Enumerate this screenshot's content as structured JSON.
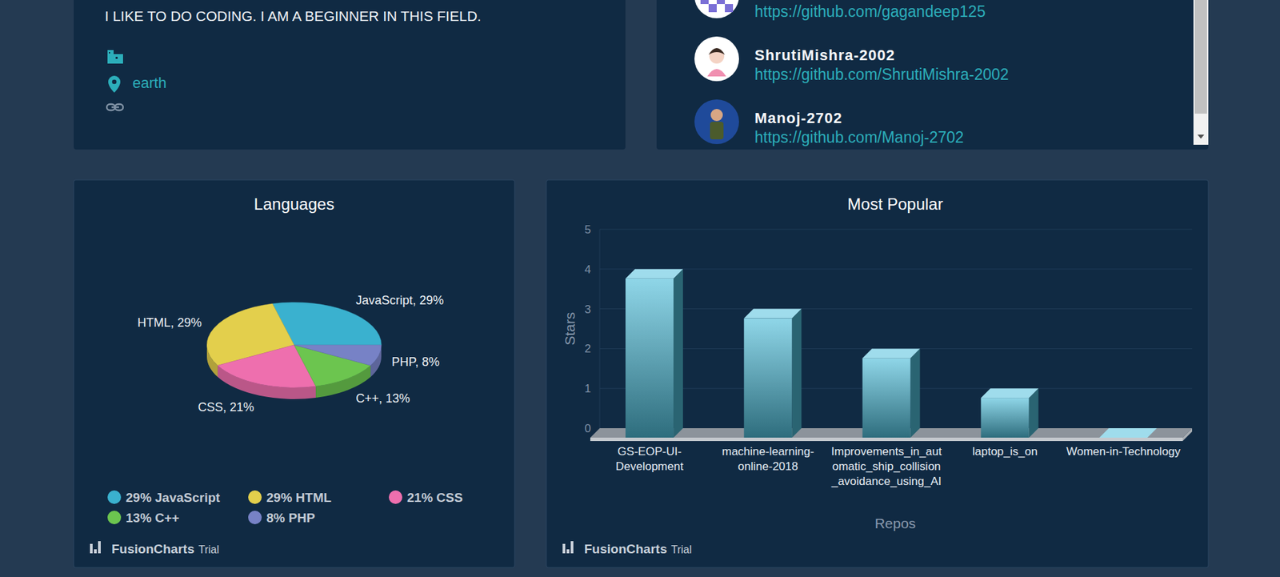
{
  "profile": {
    "bio": "I LIKE TO DO CODING. I AM A BEGINNER IN THIS FIELD.",
    "location": "earth"
  },
  "followers": [
    {
      "url": "https://github.com/gagandeep125"
    },
    {
      "login": "ShrutiMishra-2002",
      "url": "https://github.com/ShrutiMishra-2002"
    },
    {
      "login": "Manoj-2702",
      "url": "https://github.com/Manoj-2702"
    }
  ],
  "chart_data": [
    {
      "type": "pie",
      "title": "Languages",
      "categories": [
        "JavaScript",
        "HTML",
        "CSS",
        "C++",
        "PHP"
      ],
      "values": [
        29,
        29,
        21,
        13,
        8
      ],
      "value_labels": [
        "JavaScript, 29%",
        "HTML, 29%",
        "CSS, 21%",
        "C++, 13%",
        "PHP, 8%"
      ],
      "legend_labels": [
        "29% JavaScript",
        "29% HTML",
        "21% CSS",
        "13% C++",
        "8% PHP"
      ],
      "colors": [
        "#3ab1cf",
        "#e3cf4c",
        "#ee6fae",
        "#6cc54f",
        "#7782c6"
      ],
      "data_labels": true,
      "legend": "bottom"
    },
    {
      "type": "bar",
      "title": "Most Popular",
      "x_label": "Repos",
      "y_label": "Stars",
      "categories": [
        "GS-EOP-UI-Development",
        "machine-learning-online-2018",
        "Improvements_in_automatic_ship_collision_avoidance_using_AI",
        "laptop_is_on",
        "Women-in-Technology"
      ],
      "values": [
        4,
        3,
        2,
        1,
        0
      ],
      "color": "#4cb6d0",
      "ylim": [
        0,
        5
      ],
      "yticks": [
        0,
        1,
        2,
        3,
        4,
        5
      ],
      "grid": true
    }
  ],
  "watermark": {
    "brand": "FusionCharts",
    "edition": "Trial"
  }
}
